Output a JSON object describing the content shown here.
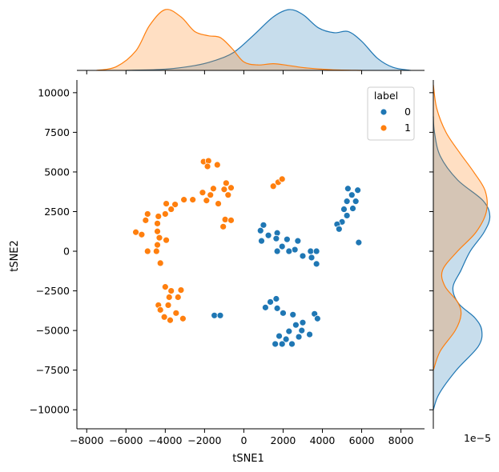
{
  "chart_data": {
    "type": "scatter",
    "xlabel": "tSNE1",
    "ylabel": "tSNE2",
    "xlim": [
      -8500,
      9200
    ],
    "ylim": [
      -11200,
      10800
    ],
    "xticks": [
      -8000,
      -6000,
      -4000,
      -2000,
      0,
      2000,
      4000,
      6000,
      8000
    ],
    "yticks": [
      -10000,
      -7500,
      -5000,
      -2500,
      0,
      2500,
      5000,
      7500,
      10000
    ],
    "xtick_labels": [
      "−8000",
      "−6000",
      "−4000",
      "−2000",
      "0",
      "2000",
      "4000",
      "6000",
      "8000"
    ],
    "ytick_labels": [
      "−10000",
      "−7500",
      "−5000",
      "−2500",
      "0",
      "2500",
      "5000",
      "7500",
      "10000"
    ],
    "marginal_scale_label": "1e−5",
    "legend": {
      "title": "label",
      "position": "top-right"
    },
    "series": [
      {
        "name": "0",
        "color": "#1f77b4",
        "points": [
          [
            5300,
            3950
          ],
          [
            5800,
            3850
          ],
          [
            5500,
            3550
          ],
          [
            5250,
            3150
          ],
          [
            5700,
            3150
          ],
          [
            5100,
            2650
          ],
          [
            5550,
            2700
          ],
          [
            5250,
            2250
          ],
          [
            5000,
            1850
          ],
          [
            4750,
            1700
          ],
          [
            4850,
            1400
          ],
          [
            5850,
            550
          ],
          [
            1000,
            1650
          ],
          [
            850,
            1300
          ],
          [
            1700,
            1150
          ],
          [
            1250,
            1000
          ],
          [
            900,
            650
          ],
          [
            1650,
            800
          ],
          [
            2200,
            750
          ],
          [
            2750,
            650
          ],
          [
            1950,
            300
          ],
          [
            2600,
            100
          ],
          [
            1700,
            0
          ],
          [
            2300,
            0
          ],
          [
            3400,
            0
          ],
          [
            3700,
            0
          ],
          [
            3000,
            -300
          ],
          [
            3450,
            -400
          ],
          [
            3700,
            -800
          ],
          [
            1650,
            -3000
          ],
          [
            1350,
            -3200
          ],
          [
            1100,
            -3550
          ],
          [
            1700,
            -3600
          ],
          [
            2000,
            -3900
          ],
          [
            2500,
            -4000
          ],
          [
            3600,
            -3950
          ],
          [
            3000,
            -4500
          ],
          [
            3750,
            -4250
          ],
          [
            2650,
            -4650
          ],
          [
            2950,
            -5000
          ],
          [
            2300,
            -5050
          ],
          [
            1800,
            -5350
          ],
          [
            2800,
            -5400
          ],
          [
            3350,
            -5250
          ],
          [
            2150,
            -5550
          ],
          [
            1600,
            -5850
          ],
          [
            1950,
            -5850
          ],
          [
            2450,
            -5850
          ],
          [
            -1500,
            -4050
          ],
          [
            -1200,
            -4050
          ]
        ]
      },
      {
        "name": "1",
        "color": "#ff7f0e",
        "points": [
          [
            -2050,
            5650
          ],
          [
            -1800,
            5700
          ],
          [
            -1850,
            5350
          ],
          [
            -1350,
            5450
          ],
          [
            1750,
            4350
          ],
          [
            1950,
            4550
          ],
          [
            1500,
            4100
          ],
          [
            -900,
            4300
          ],
          [
            -1000,
            3900
          ],
          [
            -650,
            4000
          ],
          [
            -800,
            3550
          ],
          [
            -1550,
            3950
          ],
          [
            -1700,
            3550
          ],
          [
            -2100,
            3700
          ],
          [
            -1900,
            3200
          ],
          [
            -2600,
            3250
          ],
          [
            -3050,
            3250
          ],
          [
            -1300,
            3000
          ],
          [
            -3950,
            3000
          ],
          [
            -3500,
            2950
          ],
          [
            -3700,
            2650
          ],
          [
            -4000,
            2350
          ],
          [
            -4900,
            2350
          ],
          [
            -4350,
            2200
          ],
          [
            -5000,
            1950
          ],
          [
            -4400,
            1750
          ],
          [
            -950,
            2000
          ],
          [
            -1050,
            1550
          ],
          [
            -650,
            1950
          ],
          [
            -5500,
            1200
          ],
          [
            -5200,
            1050
          ],
          [
            -4400,
            1250
          ],
          [
            -4300,
            850
          ],
          [
            -3950,
            700
          ],
          [
            -4400,
            400
          ],
          [
            -4900,
            0
          ],
          [
            -4450,
            0
          ],
          [
            -4250,
            -750
          ],
          [
            -4000,
            -2250
          ],
          [
            -3700,
            -2500
          ],
          [
            -3200,
            -2450
          ],
          [
            -3800,
            -2900
          ],
          [
            -3350,
            -2900
          ],
          [
            -4350,
            -3400
          ],
          [
            -3850,
            -3400
          ],
          [
            -4250,
            -3700
          ],
          [
            -3450,
            -3900
          ],
          [
            -4050,
            -4150
          ],
          [
            -3750,
            -4350
          ],
          [
            -3100,
            -4250
          ]
        ]
      }
    ],
    "marginal_x": {
      "series": [
        {
          "name": "0",
          "color": "#1f77b4",
          "density": [
            [
              -6000,
              0
            ],
            [
              -4000,
              0.02
            ],
            [
              -2500,
              0.08
            ],
            [
              -1500,
              0.16
            ],
            [
              -500,
              0.3
            ],
            [
              500,
              0.58
            ],
            [
              1500,
              0.88
            ],
            [
              2300,
              1.0
            ],
            [
              3000,
              0.92
            ],
            [
              3800,
              0.7
            ],
            [
              4600,
              0.62
            ],
            [
              5300,
              0.64
            ],
            [
              6000,
              0.48
            ],
            [
              6800,
              0.2
            ],
            [
              7600,
              0.05
            ],
            [
              8500,
              0
            ]
          ]
        },
        {
          "name": "1",
          "color": "#ff7f0e",
          "density": [
            [
              -7500,
              0
            ],
            [
              -6500,
              0.06
            ],
            [
              -5500,
              0.32
            ],
            [
              -4800,
              0.74
            ],
            [
              -4000,
              1.0
            ],
            [
              -3200,
              0.88
            ],
            [
              -2500,
              0.64
            ],
            [
              -1800,
              0.57
            ],
            [
              -1200,
              0.54
            ],
            [
              -600,
              0.36
            ],
            [
              0,
              0.14
            ],
            [
              700,
              0.09
            ],
            [
              1500,
              0.11
            ],
            [
              2300,
              0.08
            ],
            [
              3200,
              0.04
            ],
            [
              4500,
              0.01
            ],
            [
              6000,
              0
            ]
          ]
        }
      ]
    },
    "marginal_y": {
      "series": [
        {
          "name": "0",
          "color": "#1f77b4",
          "density": [
            [
              -10000,
              0
            ],
            [
              -9000,
              0.1
            ],
            [
              -7500,
              0.4
            ],
            [
              -6000,
              0.78
            ],
            [
              -5000,
              0.84
            ],
            [
              -4200,
              0.72
            ],
            [
              -3300,
              0.44
            ],
            [
              -2300,
              0.34
            ],
            [
              -1200,
              0.48
            ],
            [
              0,
              0.64
            ],
            [
              1200,
              0.88
            ],
            [
              2200,
              0.98
            ],
            [
              3200,
              0.86
            ],
            [
              4500,
              0.42
            ],
            [
              6000,
              0.12
            ],
            [
              7500,
              0.02
            ],
            [
              8500,
              0
            ]
          ]
        },
        {
          "name": "1",
          "color": "#ff7f0e",
          "density": [
            [
              -7500,
              0
            ],
            [
              -6300,
              0.12
            ],
            [
              -5000,
              0.38
            ],
            [
              -4000,
              0.48
            ],
            [
              -3200,
              0.42
            ],
            [
              -2200,
              0.2
            ],
            [
              -1200,
              0.16
            ],
            [
              0,
              0.42
            ],
            [
              1200,
              0.74
            ],
            [
              2500,
              0.92
            ],
            [
              3800,
              0.9
            ],
            [
              5000,
              0.7
            ],
            [
              6200,
              0.46
            ],
            [
              7500,
              0.22
            ],
            [
              9000,
              0.06
            ],
            [
              10500,
              0
            ]
          ]
        }
      ]
    }
  }
}
